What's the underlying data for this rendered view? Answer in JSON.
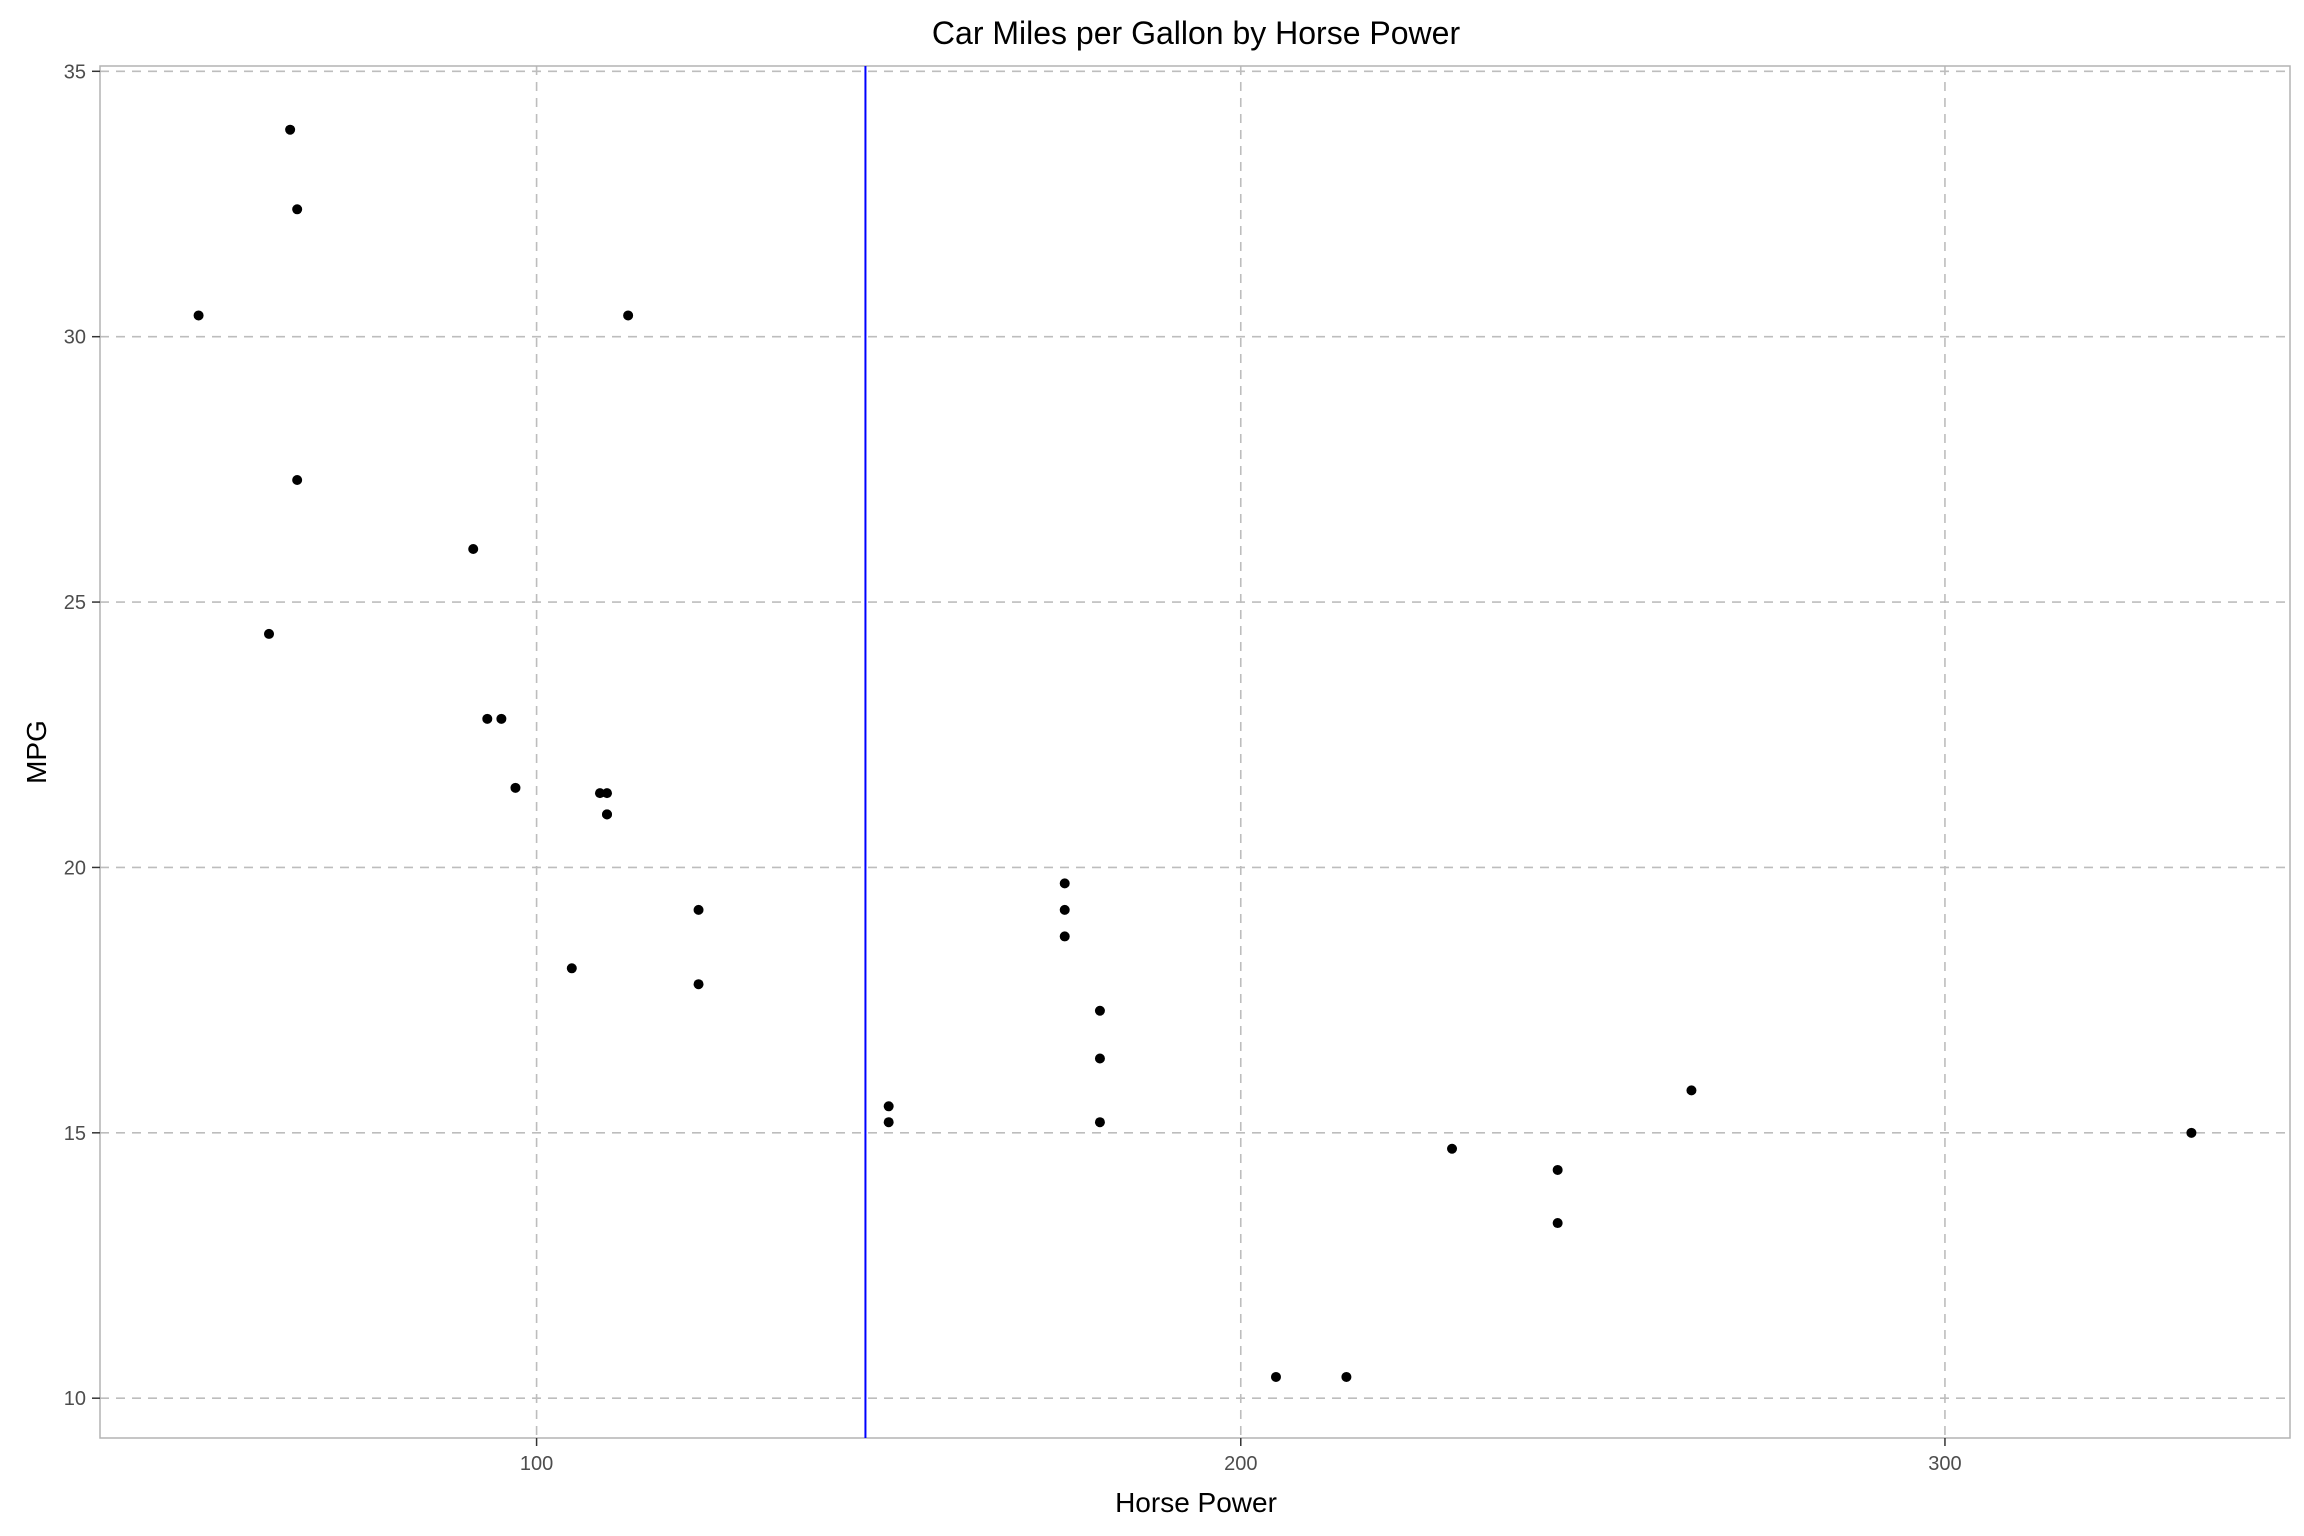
{
  "chart_data": {
    "type": "scatter",
    "title": "Car Miles per Gallon by Horse Power",
    "xlabel": "Horse Power",
    "ylabel": "MPG",
    "xlim": [
      38,
      349
    ],
    "ylim": [
      9.25,
      35.1
    ],
    "x_ticks": [
      100,
      200,
      300
    ],
    "y_ticks": [
      10,
      15,
      20,
      25,
      30,
      35
    ],
    "grid": true,
    "grid_style": "dashed",
    "legend": "none",
    "point_color": "#000000",
    "vline": {
      "x": 146.7,
      "color": "#0000ff"
    },
    "points": [
      {
        "x": 110,
        "y": 21.0
      },
      {
        "x": 110,
        "y": 21.0
      },
      {
        "x": 93,
        "y": 22.8
      },
      {
        "x": 110,
        "y": 21.4
      },
      {
        "x": 175,
        "y": 18.7
      },
      {
        "x": 105,
        "y": 18.1
      },
      {
        "x": 245,
        "y": 14.3
      },
      {
        "x": 62,
        "y": 24.4
      },
      {
        "x": 95,
        "y": 22.8
      },
      {
        "x": 123,
        "y": 19.2
      },
      {
        "x": 123,
        "y": 17.8
      },
      {
        "x": 180,
        "y": 16.4
      },
      {
        "x": 180,
        "y": 17.3
      },
      {
        "x": 180,
        "y": 15.2
      },
      {
        "x": 205,
        "y": 10.4
      },
      {
        "x": 215,
        "y": 10.4
      },
      {
        "x": 230,
        "y": 14.7
      },
      {
        "x": 66,
        "y": 32.4
      },
      {
        "x": 52,
        "y": 30.4
      },
      {
        "x": 65,
        "y": 33.9
      },
      {
        "x": 97,
        "y": 21.5
      },
      {
        "x": 150,
        "y": 15.5
      },
      {
        "x": 150,
        "y": 15.2
      },
      {
        "x": 245,
        "y": 13.3
      },
      {
        "x": 175,
        "y": 19.2
      },
      {
        "x": 66,
        "y": 27.3
      },
      {
        "x": 91,
        "y": 26.0
      },
      {
        "x": 113,
        "y": 30.4
      },
      {
        "x": 264,
        "y": 15.8
      },
      {
        "x": 175,
        "y": 19.7
      },
      {
        "x": 335,
        "y": 15.0
      },
      {
        "x": 109,
        "y": 21.4
      }
    ]
  }
}
